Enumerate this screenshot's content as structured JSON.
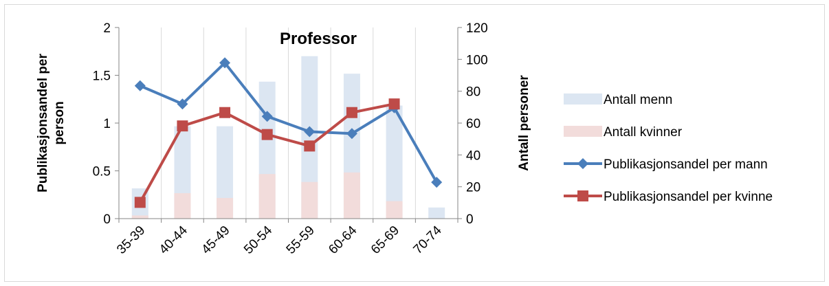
{
  "chart_data": {
    "type": "bar-line-combo",
    "title": "Professor",
    "categories": [
      "35-39",
      "40-44",
      "45-49",
      "50-54",
      "55-59",
      "60-64",
      "65-69",
      "70-74"
    ],
    "y_left": {
      "label": "Publikasjonsandel per person",
      "ylim": [
        0,
        2
      ],
      "ticks": [
        "0",
        "0.5",
        "1",
        "1.5",
        "2"
      ]
    },
    "y_right": {
      "label": "Antall personer",
      "ylim": [
        0,
        120
      ],
      "ticks": [
        "0",
        "20",
        "40",
        "60",
        "80",
        "100",
        "120"
      ]
    },
    "bar_series": [
      {
        "name": "Antall menn",
        "axis": "right",
        "color": "#dce6f2",
        "values": [
          19,
          58,
          58,
          86,
          102,
          91,
          71,
          7
        ]
      },
      {
        "name": "Antall kvinner",
        "axis": "right",
        "color": "#f2dcdb",
        "values": [
          2,
          16,
          13,
          28,
          23,
          29,
          11,
          0
        ]
      }
    ],
    "line_series": [
      {
        "name": "Publikasjonsandel per mann",
        "axis": "left",
        "color": "#4a7ebb",
        "marker": "diamond",
        "values": [
          1.39,
          1.2,
          1.63,
          1.07,
          0.91,
          0.89,
          1.16,
          0.38
        ]
      },
      {
        "name": "Publikasjonsandel per kvinne",
        "axis": "left",
        "color": "#be4b48",
        "marker": "square",
        "values": [
          0.17,
          0.97,
          1.11,
          0.88,
          0.76,
          1.11,
          1.2,
          null
        ]
      }
    ],
    "grid": "vertical-only",
    "legend_position": "right"
  }
}
